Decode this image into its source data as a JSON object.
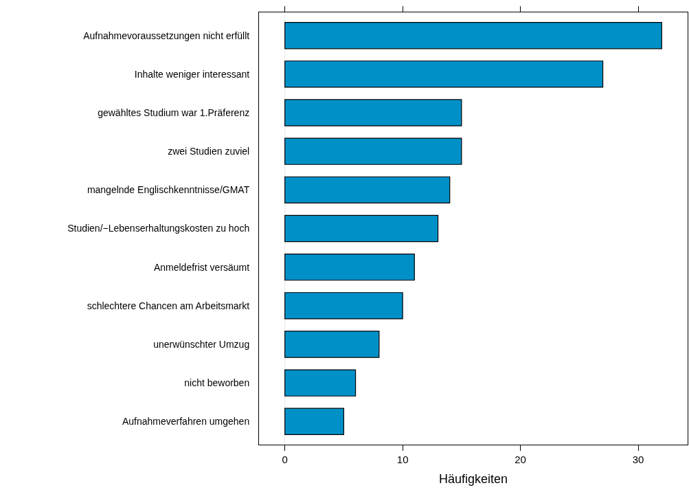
{
  "chart_data": {
    "type": "bar",
    "orientation": "horizontal",
    "xlabel": "Häufigkeiten",
    "categories": [
      "Aufnahmevoraussetzungen nicht erfüllt",
      "Inhalte weniger interessant",
      "gewähltes Studium war 1.Präferenz",
      "zwei Studien zuviel",
      "mangelnde Englischkenntnisse/GMAT",
      "Studien/−Lebenserhaltungskosten zu hoch",
      "Anmeldefrist versäumt",
      "schlechtere Chancen am Arbeitsmarkt",
      "unerwünschter Umzug",
      "nicht beworben",
      "Aufnahmeverfahren umgehen"
    ],
    "values": [
      32,
      27,
      15,
      15,
      14,
      13,
      11,
      10,
      8,
      6,
      5
    ],
    "color": "#0090c8",
    "xlim": [
      -2.2,
      34.2
    ],
    "xticks": [
      0,
      10,
      20,
      30
    ],
    "ref_lines": [
      {
        "axis": "x",
        "value": 0,
        "color": "#e6e6e6"
      }
    ],
    "grid": false
  }
}
